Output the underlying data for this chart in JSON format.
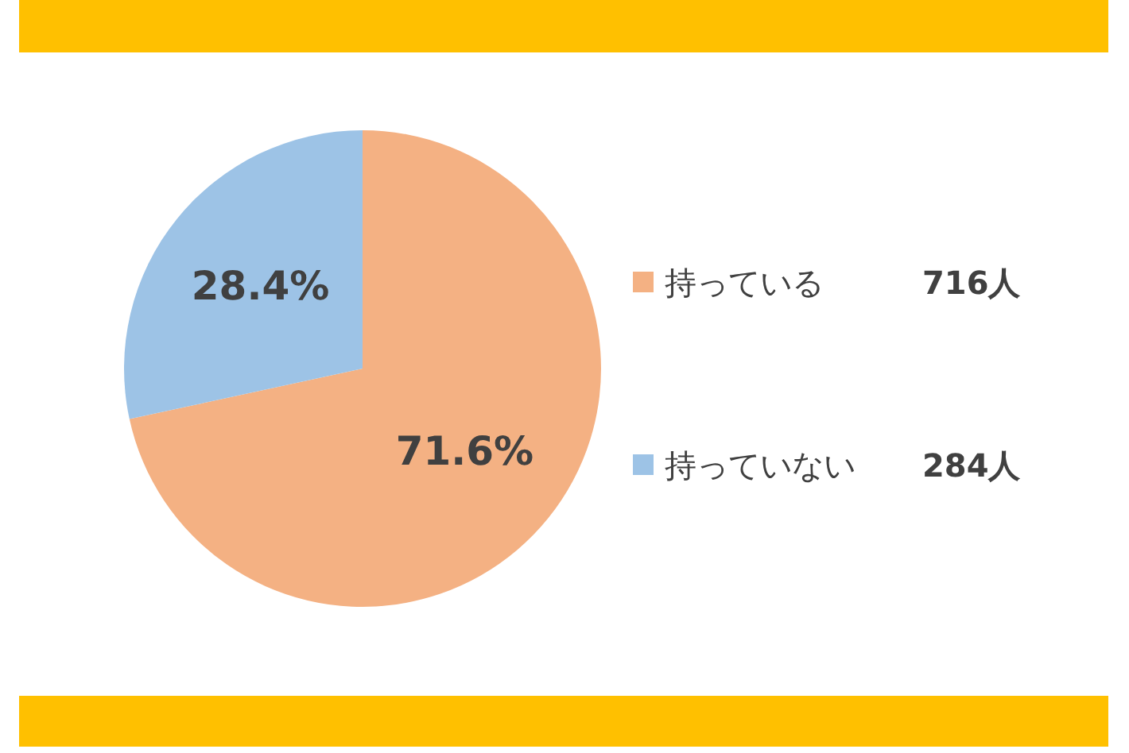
{
  "chart_data": {
    "type": "pie",
    "categories": [
      "持っている",
      "持っていない"
    ],
    "values": [
      71.6,
      28.4
    ],
    "value_labels": [
      "71.6%",
      "28.4%"
    ],
    "colors": [
      "#f4b183",
      "#9dc3e6"
    ],
    "annotations": [
      "716人",
      "284人"
    ],
    "legend": "right"
  }
}
